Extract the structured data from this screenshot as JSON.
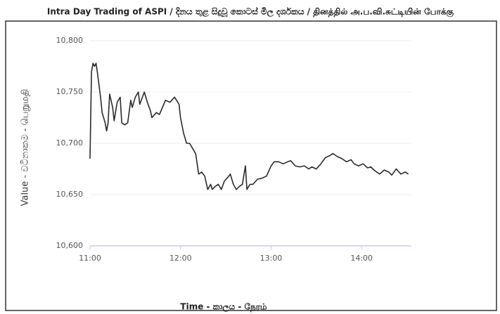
{
  "chart_data": {
    "type": "line",
    "title": "Intra Day Trading of ASPI / දිනය තුළ සිදුවූ කොටස් මිල දර්ශකය  /  தினத்தில் அ.ப.வி.சுட்டியின் போக்கு",
    "x_label": "Time - කාලය - நேரம்",
    "y_label": "Value - වටිනාකම - பெறுமதி",
    "x": [
      660,
      661,
      662,
      663,
      664,
      665,
      667,
      668,
      670,
      671,
      672,
      673,
      675,
      676,
      678,
      680,
      681,
      683,
      685,
      687,
      688,
      690,
      692,
      693,
      696,
      698,
      700,
      701,
      704,
      706,
      708,
      710,
      713,
      716,
      719,
      720,
      722,
      724,
      726,
      728,
      730,
      732,
      734,
      736,
      738,
      740,
      741,
      743,
      745,
      747,
      749,
      752,
      753,
      755,
      757,
      759,
      761,
      763,
      764,
      766,
      768,
      771,
      774,
      777,
      780,
      782,
      785,
      788,
      791,
      793,
      796,
      799,
      802,
      805,
      807,
      810,
      813,
      816,
      819,
      821,
      824,
      827,
      830,
      833,
      835,
      838,
      841,
      844,
      846,
      849,
      852,
      855,
      858,
      860,
      863,
      866,
      869,
      871
    ],
    "series": [
      {
        "name": "ASPI",
        "color": "#2b2b2b",
        "values": [
          10685,
          10770,
          10778,
          10775,
          10778,
          10768,
          10745,
          10730,
          10720,
          10712,
          10720,
          10748,
          10735,
          10722,
          10740,
          10745,
          10720,
          10718,
          10720,
          10742,
          10735,
          10745,
          10750,
          10738,
          10750,
          10740,
          10732,
          10725,
          10730,
          10728,
          10735,
          10742,
          10740,
          10745,
          10738,
          10725,
          10710,
          10700,
          10700,
          10695,
          10690,
          10670,
          10672,
          10668,
          10655,
          10660,
          10655,
          10658,
          10660,
          10655,
          10663,
          10668,
          10670,
          10660,
          10655,
          10658,
          10660,
          10678,
          10655,
          10660,
          10660,
          10665,
          10666,
          10668,
          10678,
          10682,
          10682,
          10680,
          10682,
          10683,
          10678,
          10677,
          10678,
          10675,
          10677,
          10675,
          10680,
          10686,
          10688,
          10690,
          10687,
          10685,
          10682,
          10684,
          10680,
          10678,
          10680,
          10676,
          10677,
          10673,
          10670,
          10674,
          10672,
          10669,
          10675,
          10670,
          10672,
          10670
        ]
      }
    ],
    "xlim": [
      660,
      873
    ],
    "xticks": [
      {
        "value": 660,
        "label": "11:00"
      },
      {
        "value": 720,
        "label": "12:00"
      },
      {
        "value": 780,
        "label": "13:00"
      },
      {
        "value": 840,
        "label": "14:00"
      }
    ],
    "ylim": [
      10600,
      10800
    ],
    "yticks": [
      {
        "value": 10600,
        "label": "10,600"
      },
      {
        "value": 10650,
        "label": "10,650"
      },
      {
        "value": 10700,
        "label": "10,700"
      },
      {
        "value": 10750,
        "label": "10,750"
      },
      {
        "value": 10800,
        "label": "10,800"
      }
    ],
    "grid": true
  }
}
